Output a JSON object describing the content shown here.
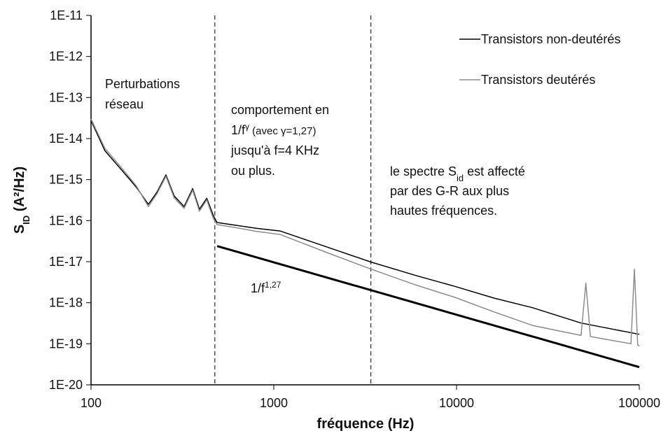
{
  "chart_data": {
    "type": "line",
    "xscale": "log",
    "yscale": "log",
    "xlabel": "fréquence (Hz)",
    "ylabel": [
      {
        "text": "S"
      },
      {
        "text": "ID",
        "role": "sub"
      },
      {
        "text": " (A²/Hz)"
      }
    ],
    "xlim": [
      100,
      100000
    ],
    "xticks": [
      100,
      1000,
      10000,
      100000
    ],
    "ylim": [
      1e-20,
      1e-11
    ],
    "yticks": [
      {
        "value": 1e-20,
        "label": "1E-20"
      },
      {
        "value": 1e-19,
        "label": "1E-19"
      },
      {
        "value": 1e-18,
        "label": "1E-18"
      },
      {
        "value": 1e-17,
        "label": "1E-17"
      },
      {
        "value": 1e-16,
        "label": "1E-16"
      },
      {
        "value": 1e-15,
        "label": "1E-15"
      },
      {
        "value": 1e-14,
        "label": "1E-14"
      },
      {
        "value": 1e-13,
        "label": "1E-13"
      },
      {
        "value": 1e-12,
        "label": "1E-12"
      },
      {
        "value": 1e-11,
        "label": "1E-11"
      }
    ],
    "legend": "upper-right",
    "series": [
      {
        "name": "Transistors non-deutérés",
        "color": "#000000",
        "x": [
          100,
          119,
          149,
          177,
          206,
          230,
          257,
          285,
          323,
          360,
          392,
          430,
          468,
          489,
          650,
          800,
          1082,
          2000,
          3400,
          6000,
          9800,
          16000,
          26000,
          48000,
          100000
        ],
        "values": [
          2.75e-14,
          5.1e-15,
          1.6e-15,
          6.5e-16,
          2.5e-16,
          5e-16,
          1.3e-15,
          4e-16,
          2.2e-16,
          6e-16,
          1.9e-16,
          3.5e-16,
          1.3e-16,
          9e-17,
          7.5e-17,
          6.5e-17,
          5.6e-17,
          2.2e-17,
          9.8e-18,
          4.6e-18,
          2.5e-18,
          1.3e-18,
          7.6e-19,
          3.2e-19,
          1.7e-19
        ]
      },
      {
        "name": "Transistors deutérés",
        "color": "#8c8c8c",
        "x": [
          100,
          119,
          149,
          177,
          206,
          230,
          257,
          285,
          323,
          360,
          392,
          430,
          468,
          489,
          650,
          800,
          1082,
          2000,
          3400,
          6000,
          9800,
          16000,
          26000,
          48000,
          51000,
          54000,
          90000,
          94000,
          98000,
          100000
        ],
        "values": [
          3e-14,
          5.8e-15,
          1.8e-15,
          7e-16,
          2.2e-16,
          4.6e-16,
          1.2e-15,
          3.6e-16,
          2e-16,
          5.5e-16,
          1.7e-16,
          3.2e-16,
          1.1e-16,
          8e-17,
          6.5e-17,
          5.5e-17,
          4.6e-17,
          1.6e-17,
          6.6e-18,
          2.7e-18,
          1.35e-18,
          6e-19,
          2.8e-19,
          1.6e-19,
          3e-18,
          1.5e-19,
          1e-19,
          6.6e-18,
          9.5e-20,
          8.7e-20
        ]
      }
    ],
    "reference_line": {
      "x": [
        490,
        100000
      ],
      "values": [
        2.4e-17,
        2.7e-20
      ],
      "color": "#000000"
    },
    "vlines": [
      476,
      3400
    ],
    "annotations": [
      {
        "lines": [
          [
            {
              "text": "Perturbations"
            }
          ],
          [
            {
              "text": "réseau"
            }
          ]
        ]
      },
      {
        "lines": [
          [
            {
              "text": "comportement en"
            }
          ],
          [
            {
              "text": "1/f"
            },
            {
              "text": "γ",
              "role": "sup"
            },
            {
              "text": " (avec γ=1,27)",
              "role": "small"
            }
          ],
          [
            {
              "text": "jusqu'à f=4 KHz"
            }
          ],
          [
            {
              "text": "ou plus."
            }
          ]
        ]
      },
      {
        "lines": [
          [
            {
              "text": "le spectre S"
            },
            {
              "text": "id",
              "role": "sub"
            },
            {
              "text": " est affecté"
            }
          ],
          [
            {
              "text": "par des G-R aux plus"
            }
          ],
          [
            {
              "text": "hautes fréquences."
            }
          ]
        ]
      },
      {
        "lines": [
          [
            {
              "text": "1/f"
            },
            {
              "text": "1,27",
              "role": "sup"
            }
          ]
        ]
      }
    ]
  }
}
